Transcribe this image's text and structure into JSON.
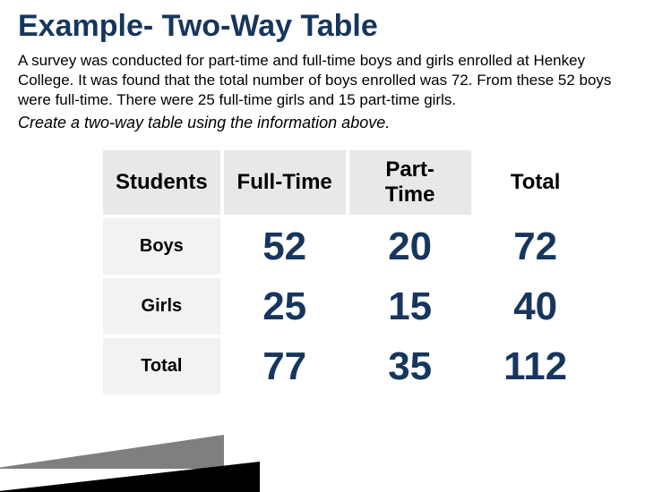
{
  "title": "Example- Two-Way Table",
  "description": "A survey was conducted for part-time and full-time boys and girls enrolled at Henkey College. It was found that the total number of boys enrolled was 72. From these 52 boys were full-time. There were 25 full-time girls and 15 part-time girls.",
  "instruction": "Create a two-way table using the information above.",
  "colors": {
    "title": "#17365d",
    "values": "#17365d",
    "header_bg": "#e8e8e8",
    "rowlabel_bg": "#f2f2f2",
    "wedge_gray": "#7f7f7f",
    "wedge_black": "#000000"
  },
  "table": {
    "columns": [
      "Students",
      "Full-Time",
      "Part-Time",
      "Total"
    ],
    "rows": [
      {
        "label": "Boys",
        "fulltime": "52",
        "parttime": "20",
        "total": "72"
      },
      {
        "label": "Girls",
        "fulltime": "25",
        "parttime": "15",
        "total": "40"
      },
      {
        "label": "Total",
        "fulltime": "77",
        "parttime": "35",
        "total": "112"
      }
    ]
  }
}
